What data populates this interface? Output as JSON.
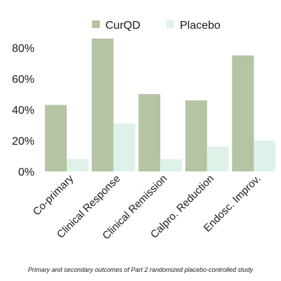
{
  "caption": "Primary and secondary outcomes of Part 2 randomized placebo-controlled study",
  "chart_data": {
    "type": "bar",
    "categories": [
      "Co-primary",
      "Clinical Response",
      "Clinical Remission",
      "Calpro. Reduction",
      "Endosc. Improv."
    ],
    "series": [
      {
        "name": "CurQD",
        "values": [
          43,
          86,
          50,
          46,
          75
        ],
        "color": "#b5c4a3"
      },
      {
        "name": "Placebo",
        "values": [
          8,
          31,
          8,
          16,
          20
        ],
        "color": "#dff2ea"
      }
    ],
    "yticks": [
      "0%",
      "20%",
      "40%",
      "60%",
      "80%"
    ],
    "ylim": [
      0,
      90
    ],
    "grid": false,
    "legend_position": "top"
  }
}
